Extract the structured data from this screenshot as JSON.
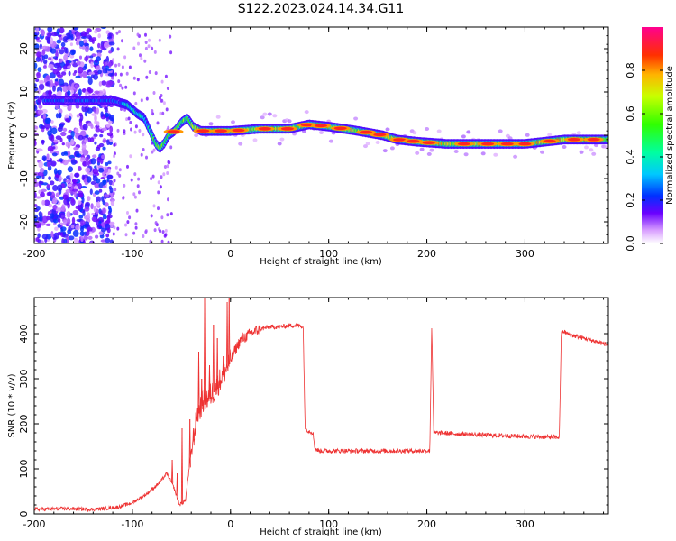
{
  "title": "S122.2023.024.14.34.G11",
  "chart_data": [
    {
      "type": "heatmap",
      "name": "spectrogram",
      "xlabel": "Height of straight line (km)",
      "ylabel": "Frequency (Hz)",
      "xlim": [
        -200,
        385
      ],
      "ylim": [
        -25,
        25
      ],
      "xticks": [
        -200,
        -100,
        0,
        100,
        200,
        300
      ],
      "yticks": [
        -20,
        -10,
        0,
        10,
        20
      ],
      "ridge": {
        "x": [
          -185,
          -150,
          -120,
          -105,
          -95,
          -88,
          -82,
          -76,
          -72,
          -68,
          -63,
          -57,
          -50,
          -44,
          -38,
          -30,
          0,
          30,
          60,
          80,
          100,
          130,
          155,
          170,
          190,
          220,
          260,
          300,
          340,
          385
        ],
        "y": [
          8,
          8,
          8,
          7,
          5,
          4,
          1,
          -2,
          -3,
          -2,
          0,
          1,
          3,
          4,
          2,
          1,
          1,
          1.5,
          1.5,
          2.5,
          2,
          1,
          0,
          -1,
          -1.5,
          -2,
          -2,
          -2,
          -1,
          -1
        ]
      },
      "colorbar": {
        "label": "Normalized spectral amplitude",
        "min": 0.0,
        "max": 1.0,
        "ticks": [
          "0.0",
          "0.2",
          "0.4",
          "0.6",
          "0.8"
        ],
        "tick_values": [
          0.0,
          0.2,
          0.4,
          0.6,
          0.8
        ]
      }
    },
    {
      "type": "line",
      "name": "snr",
      "xlabel": "Height of straight line (km)",
      "ylabel": "SNR (10 * v/v)",
      "xlim": [
        -200,
        385
      ],
      "ylim": [
        0,
        480
      ],
      "xticks": [
        -200,
        -100,
        0,
        100,
        200,
        300
      ],
      "yticks": [
        0,
        100,
        200,
        300,
        400
      ],
      "color": "#ee3333",
      "series": [
        {
          "name": "SNR",
          "x": [
            -200,
            -170,
            -140,
            -115,
            -100,
            -85,
            -72,
            -65,
            -58,
            -52,
            -46,
            -40,
            -34,
            -28,
            -22,
            -16,
            -10,
            -5,
            0,
            5,
            10,
            20,
            30,
            40,
            50,
            60,
            70,
            74,
            76,
            79,
            84,
            86,
            90,
            100,
            120,
            150,
            180,
            200,
            203,
            205,
            206,
            207,
            210,
            230,
            260,
            300,
            335,
            337,
            339,
            345,
            360,
            385
          ],
          "y": [
            10,
            12,
            10,
            15,
            25,
            45,
            70,
            90,
            60,
            20,
            30,
            140,
            220,
            250,
            260,
            275,
            300,
            320,
            340,
            365,
            385,
            400,
            410,
            415,
            415,
            418,
            418,
            415,
            190,
            185,
            180,
            145,
            140,
            140,
            140,
            140,
            140,
            140,
            140,
            420,
            300,
            180,
            180,
            178,
            175,
            172,
            170,
            400,
            405,
            398,
            390,
            375
          ]
        }
      ],
      "spikes": {
        "x": [
          -60,
          -55,
          -50,
          -42,
          -38,
          -33,
          -30,
          -27,
          -22,
          -18,
          -14,
          -8,
          -4,
          -2
        ],
        "y": [
          120,
          90,
          190,
          210,
          160,
          360,
          300,
          480,
          330,
          420,
          390,
          350,
          470,
          480
        ]
      }
    }
  ]
}
